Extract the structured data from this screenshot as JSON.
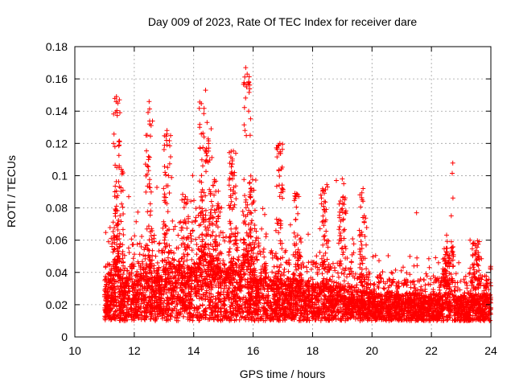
{
  "chart_data": {
    "type": "scatter",
    "title": "Day 009 of 2023, Rate Of TEC Index for receiver dare",
    "xlabel": "GPS time / hours",
    "ylabel": "ROTI / TECUs",
    "xlim": [
      10,
      24
    ],
    "ylim": [
      0,
      0.18
    ],
    "x_ticks": [
      "10",
      "12",
      "14",
      "16",
      "18",
      "20",
      "22",
      "24"
    ],
    "y_ticks": [
      "0",
      "0.02",
      "0.04",
      "0.06",
      "0.08",
      "0.1",
      "0.12",
      "0.14",
      "0.16",
      "0.18"
    ],
    "grid": true,
    "marker": "+",
    "colors": {
      "points": "#ff0000",
      "grid": "#a0a0a0",
      "axes": "#000000"
    },
    "series": [
      {
        "x": [
          11.0,
          11.05,
          11.1,
          11.15,
          11.2,
          11.25,
          11.3,
          11.35,
          11.4,
          11.45,
          11.5,
          11.55,
          11.6,
          11.7,
          11.8,
          11.9,
          12.0,
          12.1,
          12.2,
          12.3,
          12.4,
          12.5,
          12.6,
          12.7,
          12.8,
          12.9,
          13.0,
          13.1,
          13.2,
          13.3,
          13.4,
          13.5,
          13.6,
          13.7,
          13.8,
          13.9,
          14.0,
          14.1,
          14.2,
          14.3,
          14.4,
          14.5,
          14.6,
          14.7,
          14.8,
          14.9,
          15.0,
          15.1,
          15.2,
          15.3,
          15.4,
          15.5,
          15.6,
          15.7,
          15.8,
          15.9,
          16.0,
          16.1,
          16.2,
          16.3,
          16.4,
          16.5,
          16.6,
          16.7,
          16.8,
          16.9,
          17.0,
          17.1,
          17.2,
          17.3,
          17.4,
          17.5,
          17.6,
          17.7,
          17.8,
          17.9,
          18.0,
          18.1,
          18.2,
          18.3,
          18.4,
          18.5,
          18.6,
          18.7,
          18.8,
          18.9,
          19.0,
          19.1,
          19.2,
          19.3,
          19.4,
          19.5,
          19.6,
          19.7,
          19.8,
          19.9,
          20.0,
          20.2,
          20.4,
          20.6,
          20.8,
          21.0,
          21.2,
          21.4,
          21.6,
          21.8,
          22.0,
          22.2,
          22.4,
          22.6,
          22.8,
          23.0,
          23.2,
          23.4,
          23.6,
          23.8,
          24.0,
          11.4,
          11.5,
          11.45,
          11.3,
          11.35,
          12.5,
          12.52,
          12.48,
          13.1,
          13.15,
          14.4,
          14.45,
          14.5,
          14.42,
          15.75,
          15.8,
          15.78,
          15.85,
          15.9,
          16.9,
          18.8,
          19.0,
          19.05,
          19.7,
          21.5,
          22.5,
          22.7,
          23.3,
          23.6
        ],
        "y": [
          0.025,
          0.03,
          0.028,
          0.035,
          0.04,
          0.032,
          0.038,
          0.045,
          0.042,
          0.05,
          0.036,
          0.03,
          0.033,
          0.028,
          0.035,
          0.04,
          0.03,
          0.032,
          0.036,
          0.038,
          0.034,
          0.04,
          0.03,
          0.035,
          0.038,
          0.03,
          0.042,
          0.036,
          0.04,
          0.045,
          0.038,
          0.042,
          0.04,
          0.035,
          0.04,
          0.038,
          0.042,
          0.04,
          0.045,
          0.05,
          0.048,
          0.046,
          0.042,
          0.04,
          0.044,
          0.038,
          0.04,
          0.036,
          0.042,
          0.044,
          0.04,
          0.038,
          0.042,
          0.046,
          0.05,
          0.04,
          0.036,
          0.032,
          0.03,
          0.034,
          0.036,
          0.032,
          0.03,
          0.028,
          0.032,
          0.03,
          0.028,
          0.03,
          0.026,
          0.028,
          0.03,
          0.032,
          0.028,
          0.026,
          0.025,
          0.028,
          0.026,
          0.024,
          0.025,
          0.028,
          0.026,
          0.024,
          0.025,
          0.022,
          0.024,
          0.026,
          0.025,
          0.024,
          0.022,
          0.024,
          0.022,
          0.02,
          0.022,
          0.021,
          0.02,
          0.019,
          0.02,
          0.019,
          0.018,
          0.02,
          0.019,
          0.018,
          0.02,
          0.019,
          0.018,
          0.017,
          0.019,
          0.018,
          0.02,
          0.019,
          0.018,
          0.017,
          0.02,
          0.019,
          0.018,
          0.019,
          0.018,
          0.149,
          0.147,
          0.145,
          0.12,
          0.118,
          0.146,
          0.132,
          0.11,
          0.128,
          0.1,
          0.153,
          0.133,
          0.12,
          0.115,
          0.167,
          0.163,
          0.155,
          0.14,
          0.125,
          0.12,
          0.097,
          0.098,
          0.095,
          0.092,
          0.077,
          0.055,
          0.052,
          0.06,
          0.05
        ]
      }
    ]
  }
}
